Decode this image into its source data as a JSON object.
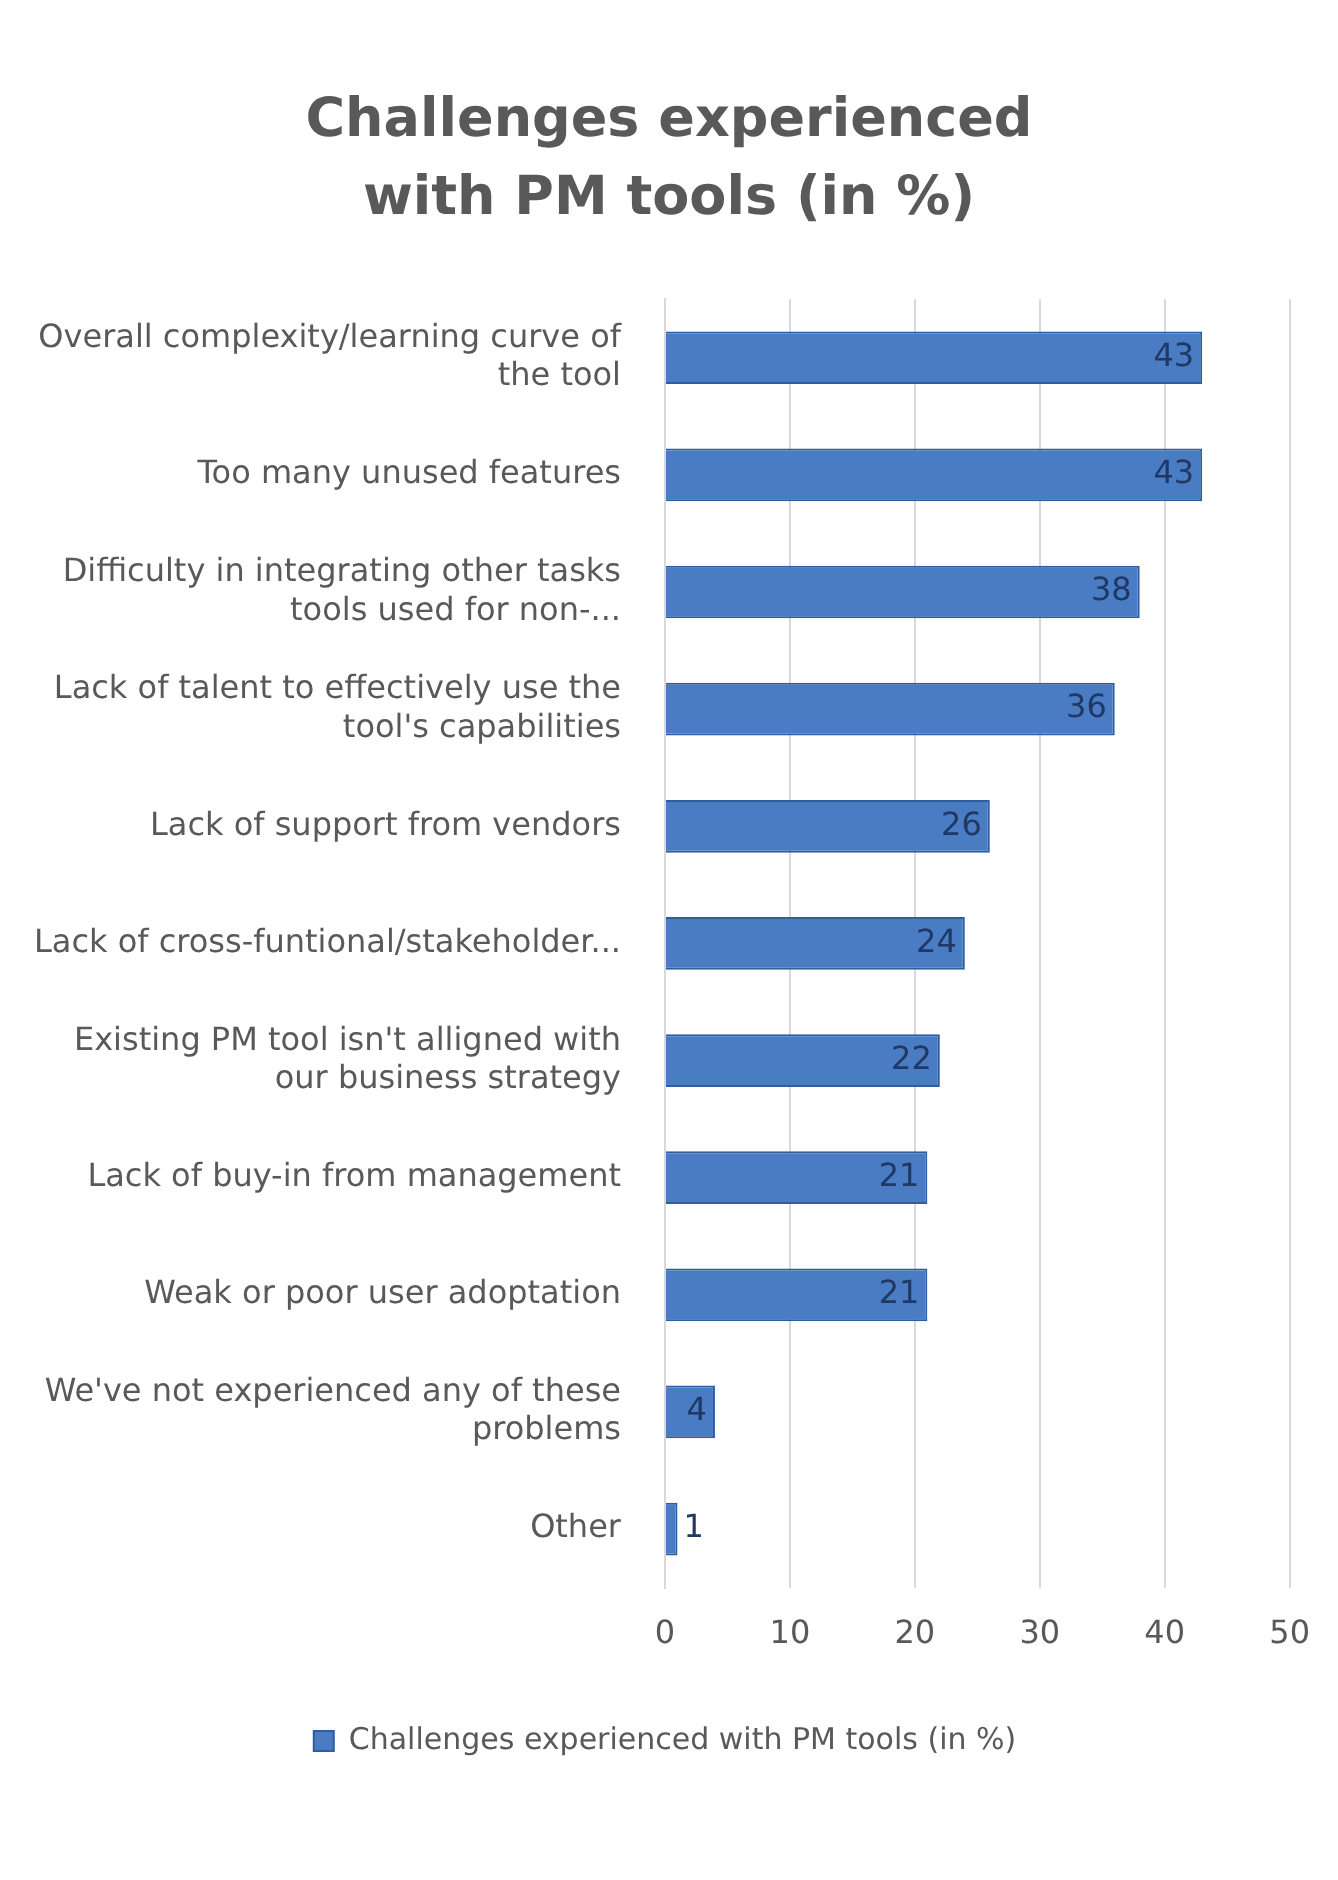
{
  "chart_data": {
    "type": "bar",
    "orientation": "horizontal",
    "title": "Challenges experienced with PM tools (in %)",
    "categories": [
      "Overall complexity/learning curve of the tool",
      "Too many unused features",
      "Difficulty in integrating other tasks tools used for non-...",
      "Lack of talent to effectively use the tool's capabilities",
      "Lack of support from vendors",
      "Lack of cross-funtional/stakeholder...",
      "Existing PM tool isn't alligned with our business strategy",
      "Lack of buy-in from management",
      "Weak or poor user adoptation",
      "We've not experienced any of these problems",
      "Other"
    ],
    "series": [
      {
        "name": "Challenges experienced with PM tools (in %)",
        "color": "#4a7cc4",
        "values": [
          43,
          43,
          38,
          36,
          26,
          24,
          22,
          21,
          21,
          4,
          1
        ]
      }
    ],
    "xlim": [
      0,
      50
    ],
    "xticks": [
      0,
      10,
      20,
      30,
      40,
      50
    ],
    "grid": "x",
    "legend": "bottom",
    "data_labels": true
  }
}
